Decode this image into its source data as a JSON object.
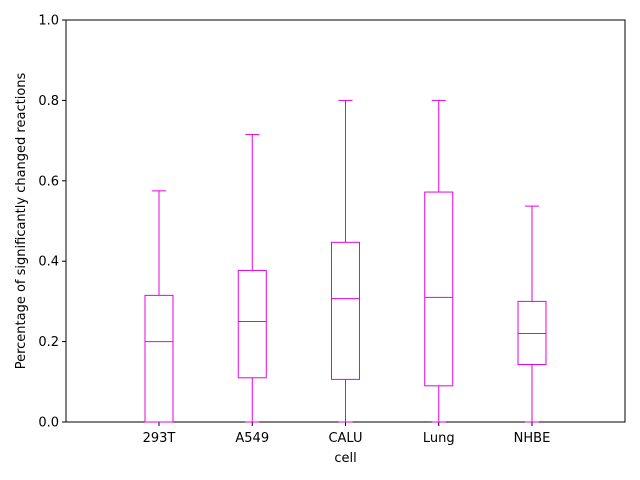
{
  "chart_data": {
    "type": "box",
    "title": "",
    "xlabel": "cell",
    "ylabel": "Percentage of significantly changed reactions",
    "ylim": [
      0,
      1.0
    ],
    "yticks": [
      "0.0",
      "0.2",
      "0.4",
      "0.6",
      "0.8",
      "1.0"
    ],
    "categories": [
      "293T",
      "A549",
      "CALU",
      "Lung",
      "NHBE"
    ],
    "boxes": [
      {
        "label": "293T",
        "whisker_low": 0.0,
        "q1": 0.0,
        "median": 0.2,
        "q3": 0.315,
        "whisker_high": 0.575
      },
      {
        "label": "A549",
        "whisker_low": 0.0,
        "q1": 0.11,
        "median": 0.25,
        "q3": 0.377,
        "whisker_high": 0.715
      },
      {
        "label": "CALU",
        "whisker_low": 0.0,
        "q1": 0.106,
        "median": 0.307,
        "q3": 0.447,
        "whisker_high": 0.8
      },
      {
        "label": "Lung",
        "whisker_low": 0.0,
        "q1": 0.09,
        "median": 0.31,
        "q3": 0.572,
        "whisker_high": 0.8
      },
      {
        "label": "NHBE",
        "whisker_low": 0.0,
        "q1": 0.143,
        "median": 0.22,
        "q3": 0.3,
        "whisker_high": 0.537
      }
    ],
    "box_color": "#e600e6",
    "grid": false,
    "legend": "none"
  }
}
